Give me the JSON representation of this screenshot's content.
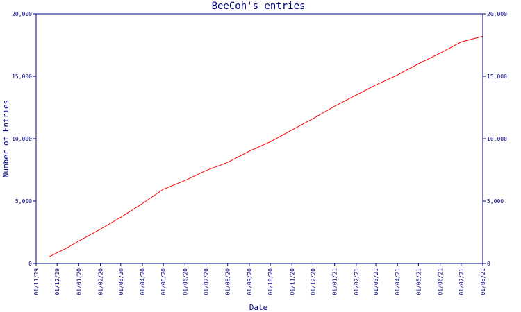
{
  "chart_data": {
    "type": "line",
    "title": "BeeCoh's entries",
    "xlabel": "Date",
    "ylabel": "Number of Entries",
    "grid": false,
    "legend": "none",
    "colors": {
      "axis": "#000080",
      "series": "#ff0000",
      "background": "#ffffff"
    },
    "xlim": [
      "2019-11-01",
      "2021-08-01"
    ],
    "ylim": [
      0,
      20000
    ],
    "y_ticks": [
      {
        "value": 0,
        "label": "0"
      },
      {
        "value": 5000,
        "label": "5,000"
      },
      {
        "value": 10000,
        "label": "10,000"
      },
      {
        "value": 15000,
        "label": "15,000"
      },
      {
        "value": 20000,
        "label": "20,000"
      }
    ],
    "x_ticks": [
      {
        "value": "2019-11-01",
        "label": "01/11/19"
      },
      {
        "value": "2019-12-01",
        "label": "01/12/19"
      },
      {
        "value": "2020-01-01",
        "label": "01/01/20"
      },
      {
        "value": "2020-02-01",
        "label": "01/02/20"
      },
      {
        "value": "2020-03-01",
        "label": "01/03/20"
      },
      {
        "value": "2020-04-01",
        "label": "01/04/20"
      },
      {
        "value": "2020-05-01",
        "label": "01/05/20"
      },
      {
        "value": "2020-06-01",
        "label": "01/06/20"
      },
      {
        "value": "2020-07-01",
        "label": "01/07/20"
      },
      {
        "value": "2020-08-01",
        "label": "01/08/20"
      },
      {
        "value": "2020-09-01",
        "label": "01/09/20"
      },
      {
        "value": "2020-10-01",
        "label": "01/10/20"
      },
      {
        "value": "2020-11-01",
        "label": "01/11/20"
      },
      {
        "value": "2020-12-01",
        "label": "01/12/20"
      },
      {
        "value": "2021-01-01",
        "label": "01/01/21"
      },
      {
        "value": "2021-02-01",
        "label": "01/02/21"
      },
      {
        "value": "2021-03-01",
        "label": "01/03/21"
      },
      {
        "value": "2021-04-01",
        "label": "01/04/21"
      },
      {
        "value": "2021-05-01",
        "label": "01/05/21"
      },
      {
        "value": "2021-06-01",
        "label": "01/06/21"
      },
      {
        "value": "2021-07-01",
        "label": "01/07/21"
      },
      {
        "value": "2021-08-01",
        "label": "01/08/21"
      }
    ],
    "series": [
      {
        "points": [
          {
            "x": "2019-11-20",
            "y": 550
          },
          {
            "x": "2019-12-15",
            "y": 1250
          },
          {
            "x": "2020-01-01",
            "y": 1800
          },
          {
            "x": "2020-02-01",
            "y": 2750
          },
          {
            "x": "2020-03-01",
            "y": 3700
          },
          {
            "x": "2020-04-01",
            "y": 4800
          },
          {
            "x": "2020-05-01",
            "y": 5950
          },
          {
            "x": "2020-06-01",
            "y": 6650
          },
          {
            "x": "2020-07-01",
            "y": 7450
          },
          {
            "x": "2020-08-01",
            "y": 8100
          },
          {
            "x": "2020-09-01",
            "y": 9000
          },
          {
            "x": "2020-10-01",
            "y": 9750
          },
          {
            "x": "2020-11-01",
            "y": 10700
          },
          {
            "x": "2020-12-01",
            "y": 11600
          },
          {
            "x": "2021-01-01",
            "y": 12600
          },
          {
            "x": "2021-02-01",
            "y": 13500
          },
          {
            "x": "2021-03-01",
            "y": 14300
          },
          {
            "x": "2021-04-01",
            "y": 15100
          },
          {
            "x": "2021-05-01",
            "y": 16000
          },
          {
            "x": "2021-06-01",
            "y": 16850
          },
          {
            "x": "2021-07-01",
            "y": 17750
          },
          {
            "x": "2021-08-01",
            "y": 18200
          }
        ]
      }
    ]
  }
}
